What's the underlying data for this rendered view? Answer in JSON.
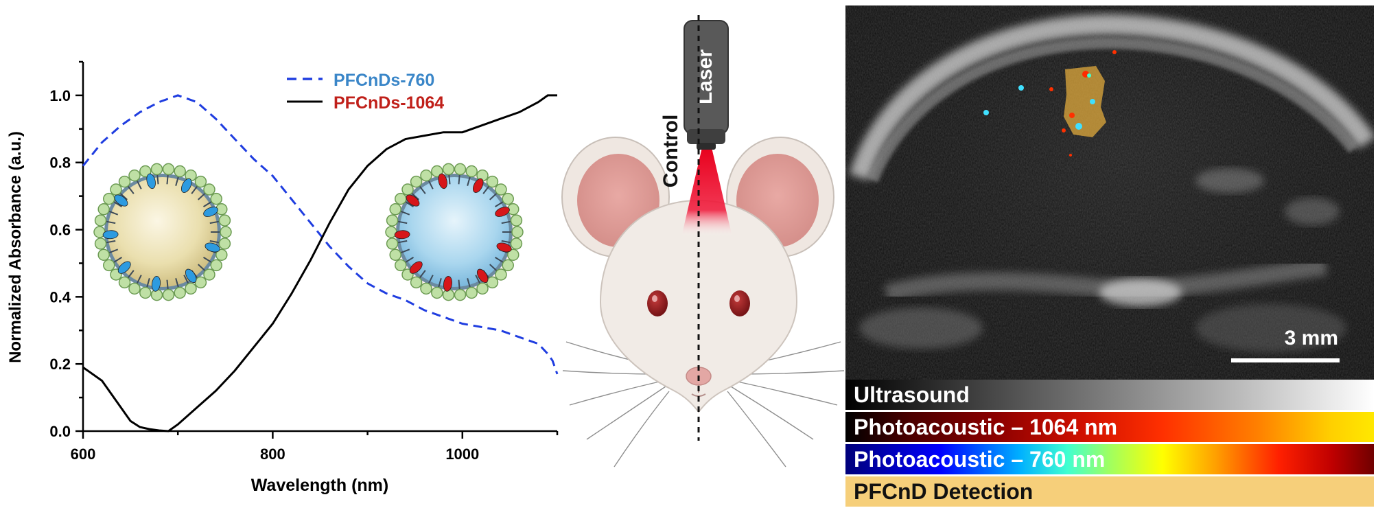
{
  "chart_data": {
    "type": "line",
    "xlabel": "Wavelength (nm)",
    "ylabel": "Normalized Absorbance (a.u.)",
    "xlim": [
      600,
      1100
    ],
    "ylim": [
      0,
      1.1
    ],
    "xticks": [
      600,
      800,
      1000
    ],
    "yticks": [
      0.0,
      0.2,
      0.4,
      0.6,
      0.8,
      1.0
    ],
    "xtick_labels": [
      "600",
      "800",
      "1000"
    ],
    "ytick_labels": [
      "0.0",
      "0.2",
      "0.4",
      "0.6",
      "0.8",
      "1.0"
    ],
    "legend_position": "top-right",
    "grid": false,
    "series": [
      {
        "name": "PFCnDs-760",
        "style": "dashed",
        "line_color": "#1f3de0",
        "label_color": "#3a86c8",
        "x": [
          600,
          620,
          640,
          660,
          680,
          700,
          720,
          740,
          760,
          780,
          800,
          820,
          840,
          860,
          880,
          900,
          920,
          940,
          960,
          980,
          1000,
          1020,
          1040,
          1060,
          1080,
          1090,
          1095,
          1100
        ],
        "y": [
          0.79,
          0.86,
          0.91,
          0.95,
          0.98,
          1.0,
          0.98,
          0.93,
          0.87,
          0.81,
          0.76,
          0.69,
          0.62,
          0.55,
          0.49,
          0.44,
          0.41,
          0.39,
          0.36,
          0.34,
          0.32,
          0.31,
          0.3,
          0.28,
          0.26,
          0.23,
          0.21,
          0.17
        ]
      },
      {
        "name": "PFCnDs-1064",
        "style": "solid",
        "line_color": "#000000",
        "label_color": "#c0201a",
        "x": [
          600,
          620,
          640,
          650,
          660,
          670,
          680,
          690,
          700,
          720,
          740,
          760,
          780,
          800,
          820,
          840,
          860,
          880,
          900,
          920,
          940,
          960,
          980,
          1000,
          1020,
          1040,
          1060,
          1080,
          1090,
          1100
        ],
        "y": [
          0.19,
          0.15,
          0.07,
          0.03,
          0.012,
          0.006,
          0.002,
          0.0,
          0.02,
          0.07,
          0.12,
          0.18,
          0.25,
          0.32,
          0.41,
          0.51,
          0.62,
          0.72,
          0.79,
          0.84,
          0.87,
          0.88,
          0.89,
          0.89,
          0.91,
          0.93,
          0.95,
          0.98,
          1.0,
          1.0
        ]
      }
    ]
  },
  "illustration": {
    "control_label": "Control",
    "laser_label": "Laser"
  },
  "ultrasound_panel": {
    "scale_label": "3 mm"
  },
  "colorbars": {
    "ultrasound": "Ultrasound",
    "pa_1064": "Photoacoustic – 1064 nm",
    "pa_760": "Photoacoustic – 760 nm",
    "pfcnd": "PFCnD Detection"
  }
}
